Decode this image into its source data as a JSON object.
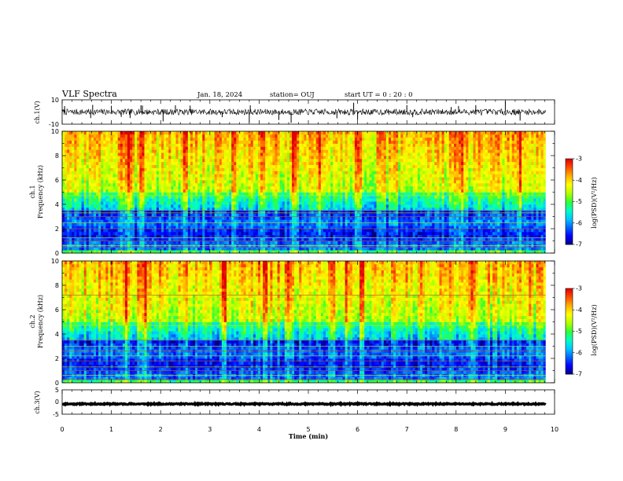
{
  "header": {
    "title": "VLF Spectra",
    "date": "Jan. 18, 2024",
    "station": "station= OUJ",
    "start": "start  UT =   0 : 20 : 0"
  },
  "colors": {
    "colormap": [
      "#000080",
      "#0000ff",
      "#0064ff",
      "#00c8ff",
      "#00ffc8",
      "#32ff32",
      "#b4ff00",
      "#ffff00",
      "#ffb400",
      "#ff5000",
      "#e00000"
    ],
    "trace": "#000000",
    "harmonic_line": "#b05a28"
  },
  "chart_data": [
    {
      "type": "line",
      "name": "ch1-waveform",
      "ylabel": "ch.1(V)",
      "ylim": [
        -10,
        10
      ],
      "yticks": [
        "10",
        "-10"
      ],
      "xlim": [
        0,
        10
      ],
      "baseline": 0,
      "amplitude": 2.5,
      "spikes_at_min": [
        0.05,
        0.58,
        0.62,
        1.0,
        1.2,
        1.38,
        1.6,
        1.63,
        2.05,
        2.3,
        2.6,
        3.25,
        3.8,
        3.82,
        4.4,
        4.65,
        5.58,
        5.92,
        6.0,
        7.0,
        7.12,
        7.9,
        8.05,
        8.4,
        9.0,
        9.3
      ]
    },
    {
      "type": "heatmap",
      "name": "ch1-spectrogram",
      "ylabel": "ch.1\nFrequency (kHz)",
      "ylim": [
        0,
        10
      ],
      "yticks": [
        "0",
        "2",
        "4",
        "6",
        "8",
        "10"
      ],
      "xlim": [
        0,
        10
      ],
      "colorbar": {
        "label": "log(PSD)(V²/Hz)",
        "range": [
          -7,
          -3
        ],
        "ticks": [
          "-3",
          "-4",
          "-5",
          "-6",
          "-7"
        ]
      },
      "data_end_min": 9.82,
      "harmonic_lines_khz": [
        0.45,
        0.6,
        1.0,
        1.25,
        2.0,
        2.5,
        3.0,
        3.3,
        3.5,
        4.7
      ],
      "bright_bursts_min": [
        1.2,
        1.35,
        1.6,
        1.65,
        2.5,
        3.2,
        3.5,
        4.1,
        4.7,
        5.2,
        6.0,
        7.9,
        8.1,
        9.3
      ]
    },
    {
      "type": "heatmap",
      "name": "ch2-spectrogram",
      "ylabel": "ch.2\nFrequency (kHz)",
      "ylim": [
        0,
        10
      ],
      "yticks": [
        "0",
        "2",
        "4",
        "6",
        "8",
        "10"
      ],
      "xlim": [
        0,
        10
      ],
      "colorbar": {
        "label": "log(PSD)(V²/Hz)",
        "range": [
          -7,
          -3
        ],
        "ticks": [
          "-3",
          "-4",
          "-5",
          "-6",
          "-7"
        ]
      },
      "data_end_min": 9.82,
      "harmonic_lines_khz": [
        0.3,
        0.6,
        1.0,
        1.3,
        1.8,
        2.2,
        2.6,
        3.0,
        3.5,
        4.7,
        7.2
      ],
      "bright_bursts_min": [
        1.3,
        1.6,
        1.7,
        2.5,
        3.3,
        4.1,
        4.6,
        5.5,
        5.8,
        6.1,
        7.8,
        8.3,
        9.5
      ]
    },
    {
      "type": "line",
      "name": "ch3-waveform",
      "ylabel": "ch.3(V)",
      "ylim": [
        -5,
        5
      ],
      "yticks": [
        "5",
        "0",
        "-5"
      ],
      "xlim": [
        0,
        10
      ],
      "baseline": -0.8,
      "amplitude": 0.25
    }
  ],
  "xaxis": {
    "label": "Time  (min)",
    "ticks": [
      "0",
      "1",
      "2",
      "3",
      "4",
      "5",
      "6",
      "7",
      "8",
      "9",
      "10"
    ]
  }
}
